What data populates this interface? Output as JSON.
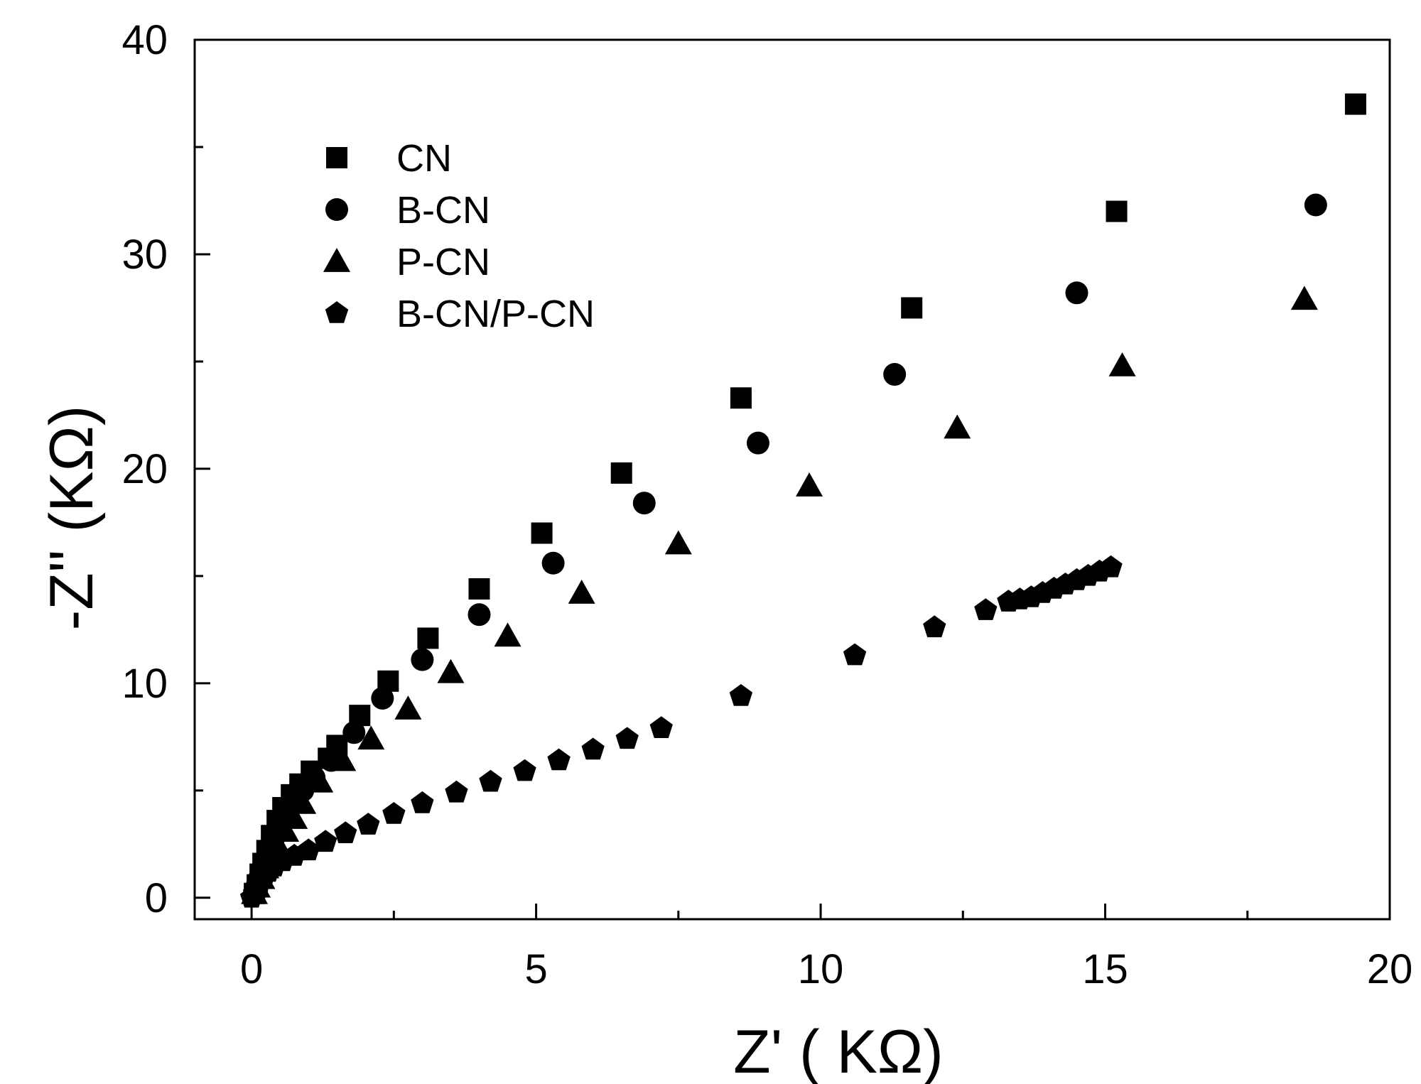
{
  "chart_data": {
    "type": "scatter",
    "xlabel": "Z' ( KΩ)",
    "ylabel": "-Z'' (KΩ)",
    "xlim": [
      -1,
      20
    ],
    "ylim": [
      -1,
      40
    ],
    "x_ticks": [
      0,
      5,
      10,
      15,
      20
    ],
    "y_ticks": [
      0,
      10,
      20,
      30,
      40
    ],
    "x_minor_ticks": [
      2.5,
      7.5,
      12.5,
      17.5
    ],
    "y_minor_ticks": [
      5,
      15,
      25,
      35
    ],
    "grid": false,
    "legend_position": "top-left",
    "series": [
      {
        "name": "CN",
        "marker": "square",
        "points": [
          [
            0.05,
            0.2
          ],
          [
            0.1,
            0.6
          ],
          [
            0.15,
            1.1
          ],
          [
            0.2,
            1.6
          ],
          [
            0.27,
            2.2
          ],
          [
            0.35,
            2.9
          ],
          [
            0.45,
            3.6
          ],
          [
            0.55,
            4.2
          ],
          [
            0.7,
            4.8
          ],
          [
            0.85,
            5.3
          ],
          [
            1.05,
            5.9
          ],
          [
            1.35,
            6.5
          ],
          [
            1.5,
            7.1
          ],
          [
            1.9,
            8.5
          ],
          [
            2.4,
            10.1
          ],
          [
            3.1,
            12.1
          ],
          [
            4.0,
            14.4
          ],
          [
            5.1,
            17.0
          ],
          [
            6.5,
            19.8
          ],
          [
            8.6,
            23.3
          ],
          [
            11.6,
            27.5
          ],
          [
            15.2,
            32.0
          ],
          [
            19.4,
            37.0
          ]
        ]
      },
      {
        "name": "B-CN",
        "marker": "circle",
        "points": [
          [
            0.05,
            0.2
          ],
          [
            0.1,
            0.6
          ],
          [
            0.15,
            1.0
          ],
          [
            0.22,
            1.5
          ],
          [
            0.3,
            2.1
          ],
          [
            0.38,
            2.7
          ],
          [
            0.48,
            3.3
          ],
          [
            0.6,
            3.9
          ],
          [
            0.75,
            4.5
          ],
          [
            0.9,
            5.0
          ],
          [
            1.1,
            5.6
          ],
          [
            1.4,
            6.4
          ],
          [
            1.8,
            7.7
          ],
          [
            2.3,
            9.3
          ],
          [
            3.0,
            11.1
          ],
          [
            4.0,
            13.2
          ],
          [
            5.3,
            15.6
          ],
          [
            6.9,
            18.4
          ],
          [
            8.9,
            21.2
          ],
          [
            11.3,
            24.4
          ],
          [
            14.5,
            28.2
          ],
          [
            18.7,
            32.3
          ]
        ]
      },
      {
        "name": "P-CN",
        "marker": "triangle",
        "points": [
          [
            0.05,
            0.2
          ],
          [
            0.1,
            0.5
          ],
          [
            0.18,
            0.9
          ],
          [
            0.25,
            1.4
          ],
          [
            0.35,
            1.9
          ],
          [
            0.45,
            2.5
          ],
          [
            0.6,
            3.1
          ],
          [
            0.75,
            3.7
          ],
          [
            0.9,
            4.4
          ],
          [
            1.2,
            5.4
          ],
          [
            1.6,
            6.4
          ],
          [
            2.1,
            7.4
          ],
          [
            2.75,
            8.8
          ],
          [
            3.5,
            10.5
          ],
          [
            4.5,
            12.2
          ],
          [
            5.8,
            14.2
          ],
          [
            7.5,
            16.5
          ],
          [
            9.8,
            19.2
          ],
          [
            12.4,
            21.9
          ],
          [
            15.3,
            24.8
          ],
          [
            18.5,
            27.9
          ]
        ]
      },
      {
        "name": "B-CN/P-CN",
        "marker": "pentagon",
        "points": [
          [
            0.0,
            0.0
          ],
          [
            0.05,
            0.2
          ],
          [
            0.1,
            0.45
          ],
          [
            0.15,
            0.7
          ],
          [
            0.22,
            0.95
          ],
          [
            0.3,
            1.2
          ],
          [
            0.4,
            1.45
          ],
          [
            0.55,
            1.7
          ],
          [
            0.75,
            1.95
          ],
          [
            1.0,
            2.2
          ],
          [
            1.3,
            2.6
          ],
          [
            1.65,
            3.0
          ],
          [
            2.05,
            3.4
          ],
          [
            2.5,
            3.9
          ],
          [
            3.0,
            4.4
          ],
          [
            3.6,
            4.9
          ],
          [
            4.2,
            5.4
          ],
          [
            4.8,
            5.9
          ],
          [
            5.4,
            6.4
          ],
          [
            6.0,
            6.9
          ],
          [
            6.6,
            7.4
          ],
          [
            7.2,
            7.9
          ],
          [
            8.6,
            9.4
          ],
          [
            10.6,
            11.3
          ],
          [
            12.0,
            12.6
          ],
          [
            12.9,
            13.4
          ],
          [
            13.3,
            13.8
          ],
          [
            13.5,
            13.9
          ],
          [
            13.7,
            14.0
          ],
          [
            13.9,
            14.2
          ],
          [
            14.1,
            14.4
          ],
          [
            14.3,
            14.6
          ],
          [
            14.5,
            14.8
          ],
          [
            14.7,
            15.0
          ],
          [
            14.9,
            15.2
          ],
          [
            15.1,
            15.4
          ]
        ]
      }
    ]
  }
}
